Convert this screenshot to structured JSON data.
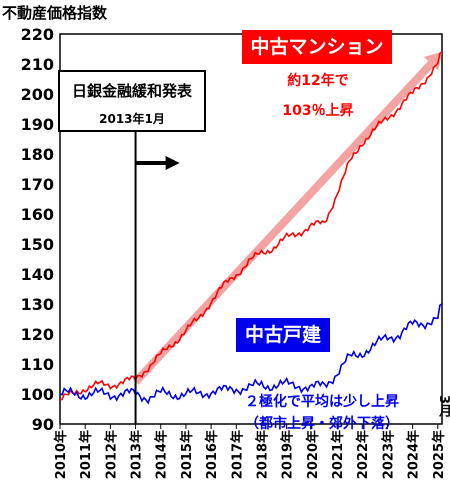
{
  "chart_data": {
    "type": "line",
    "ylabel": "不動産価格指数",
    "ylim": [
      90,
      220
    ],
    "yticks": [
      90,
      100,
      110,
      120,
      130,
      140,
      150,
      160,
      170,
      180,
      190,
      200,
      210,
      220
    ],
    "xlim": [
      "2010-01",
      "2025-03"
    ],
    "xticks": [
      "2010年",
      "2011年",
      "2012年",
      "2013年",
      "2014年",
      "2015年",
      "2016年",
      "2017年",
      "2018年",
      "2019年",
      "2020年",
      "2021年",
      "2022年",
      "2023年",
      "2024年",
      "2025年"
    ],
    "x_end_label": "3月",
    "grid": false,
    "series": [
      {
        "name": "中古マンション",
        "color": "#ff0000",
        "points": [
          [
            "2010-01",
            98
          ],
          [
            "2010-07",
            100
          ],
          [
            "2011-01",
            102
          ],
          [
            "2011-07",
            103
          ],
          [
            "2012-01",
            103
          ],
          [
            "2012-07",
            104
          ],
          [
            "2013-01",
            105
          ],
          [
            "2013-07",
            109
          ],
          [
            "2014-01",
            113
          ],
          [
            "2014-07",
            117
          ],
          [
            "2015-01",
            121
          ],
          [
            "2015-07",
            125
          ],
          [
            "2016-01",
            131
          ],
          [
            "2016-07",
            136
          ],
          [
            "2017-01",
            140
          ],
          [
            "2017-07",
            144
          ],
          [
            "2018-01",
            147
          ],
          [
            "2018-07",
            149
          ],
          [
            "2019-01",
            152
          ],
          [
            "2019-07",
            154
          ],
          [
            "2020-01",
            156
          ],
          [
            "2020-07",
            157
          ],
          [
            "2021-01",
            167
          ],
          [
            "2021-07",
            177
          ],
          [
            "2022-01",
            184
          ],
          [
            "2022-07",
            188
          ],
          [
            "2023-01",
            192
          ],
          [
            "2023-07",
            196
          ],
          [
            "2024-01",
            200
          ],
          [
            "2024-07",
            205
          ],
          [
            "2025-01",
            210
          ],
          [
            "2025-03",
            214
          ]
        ]
      },
      {
        "name": "中古戸建",
        "color": "#0000ee",
        "points": [
          [
            "2010-01",
            100
          ],
          [
            "2010-07",
            100
          ],
          [
            "2011-01",
            100
          ],
          [
            "2011-07",
            100
          ],
          [
            "2012-01",
            100
          ],
          [
            "2012-07",
            100
          ],
          [
            "2013-01",
            100
          ],
          [
            "2013-07",
            99
          ],
          [
            "2014-01",
            100
          ],
          [
            "2014-07",
            100
          ],
          [
            "2015-01",
            100
          ],
          [
            "2015-07",
            100
          ],
          [
            "2016-01",
            101
          ],
          [
            "2016-07",
            101
          ],
          [
            "2017-01",
            102
          ],
          [
            "2017-07",
            102
          ],
          [
            "2018-01",
            103
          ],
          [
            "2018-07",
            103
          ],
          [
            "2019-01",
            103
          ],
          [
            "2019-07",
            103
          ],
          [
            "2020-01",
            102
          ],
          [
            "2020-07",
            103
          ],
          [
            "2021-01",
            107
          ],
          [
            "2021-07",
            112
          ],
          [
            "2022-01",
            114
          ],
          [
            "2022-07",
            116
          ],
          [
            "2023-01",
            119
          ],
          [
            "2023-07",
            120
          ],
          [
            "2024-01",
            123
          ],
          [
            "2024-07",
            124
          ],
          [
            "2025-01",
            125
          ],
          [
            "2025-03",
            130
          ]
        ]
      }
    ],
    "trend_arrow": {
      "color": "#f4a3a3",
      "from": [
        "2013-01",
        104
      ],
      "to": [
        "2025-03",
        214
      ]
    },
    "annotations": {
      "boj_line": {
        "x": "2013-01"
      },
      "boj_arrow": {
        "from": "2013-01",
        "to": "2014-10",
        "y": 177
      },
      "boj_title": "日銀金融緩和発表",
      "boj_date": "2013年1月",
      "condo_label": "中古マンション",
      "condo_note_1": "約12年で",
      "condo_note_2": "103％上昇",
      "house_label": "中古戸建",
      "house_note_1": "２極化で平均は少し上昇",
      "house_note_2": "（都市上昇・郊外下落）"
    }
  }
}
